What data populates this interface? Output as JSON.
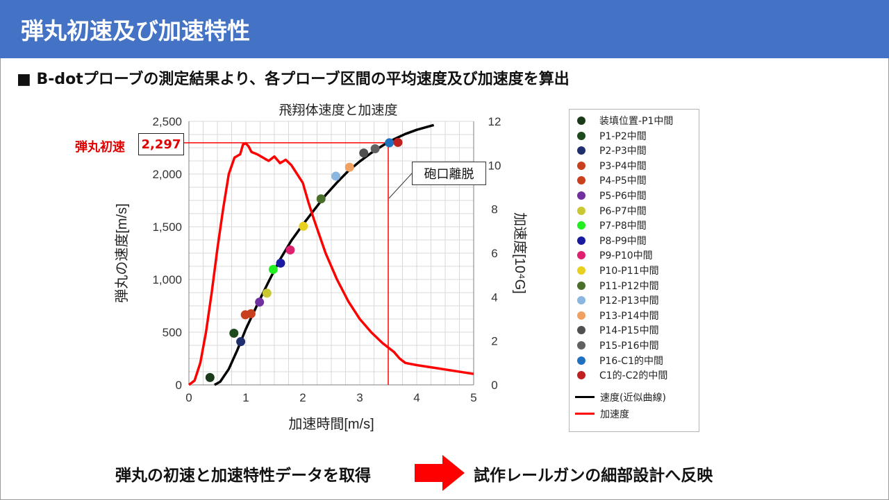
{
  "header": {
    "title": "弾丸初速及び加速特性"
  },
  "subtitle": "■ B-dotプローブの測定結果より、各プローブ区間の平均速度及び加速度を算出",
  "annotations": {
    "initial_velocity_label": "弾丸初速",
    "initial_velocity_value": "2,297",
    "muzzle_exit_label": "砲口離脱"
  },
  "footer": {
    "left_text": "弾丸の初速と加速特性データを取得",
    "right_text": "試作レールガンの細部設計へ反映",
    "arrow_color": "#ff0000"
  },
  "chart_data": {
    "type": "scatter",
    "title": "飛翔体速度と加速度",
    "xlabel": "加速時間[m/s]",
    "ylabel": "弾丸の速度[m/s]",
    "y2label": "加速度[10⁴G]",
    "xlim": [
      0,
      5
    ],
    "ylim": [
      0,
      2500
    ],
    "y2lim": [
      0,
      12
    ],
    "x_ticks": [
      "0",
      "1",
      "2",
      "3",
      "4",
      "5"
    ],
    "y_ticks": [
      "0",
      "500",
      "1,000",
      "1,500",
      "2,000",
      "2,500"
    ],
    "y2_ticks": [
      "0",
      "2",
      "4",
      "6",
      "8",
      "10",
      "12"
    ],
    "grid": true,
    "legend_position": "right",
    "points": [
      {
        "name": "装填位置-P1中間",
        "x": 0.37,
        "y": 70,
        "color": "#1a3a1a"
      },
      {
        "name": "P1-P2中間",
        "x": 0.79,
        "y": 490,
        "color": "#1c4a1c"
      },
      {
        "name": "P2-P3中間",
        "x": 0.91,
        "y": 410,
        "color": "#1f2f6e"
      },
      {
        "name": "P3-P4中間",
        "x": 0.99,
        "y": 665,
        "color": "#c8401e"
      },
      {
        "name": "P4-P5中間",
        "x": 1.09,
        "y": 675,
        "color": "#c8401e"
      },
      {
        "name": "P5-P6中間",
        "x": 1.24,
        "y": 785,
        "color": "#7030a0"
      },
      {
        "name": "P6-P7中間",
        "x": 1.37,
        "y": 870,
        "color": "#c9c832"
      },
      {
        "name": "P7-P8中間",
        "x": 1.48,
        "y": 1095,
        "color": "#22ee22"
      },
      {
        "name": "P8-P9中間",
        "x": 1.61,
        "y": 1155,
        "color": "#1a1aa0"
      },
      {
        "name": "P9-P10中間",
        "x": 1.78,
        "y": 1280,
        "color": "#e0206e"
      },
      {
        "name": "P10-P11中間",
        "x": 2.01,
        "y": 1505,
        "color": "#e8d020"
      },
      {
        "name": "P11-P12中間",
        "x": 2.32,
        "y": 1765,
        "color": "#4a6f2a"
      },
      {
        "name": "P12-P13中間",
        "x": 2.58,
        "y": 1980,
        "color": "#8ab6e0"
      },
      {
        "name": "P13-P14中間",
        "x": 2.82,
        "y": 2065,
        "color": "#f0a060"
      },
      {
        "name": "P14-P15中間",
        "x": 3.07,
        "y": 2200,
        "color": "#505050"
      },
      {
        "name": "P15-P16中間",
        "x": 3.27,
        "y": 2240,
        "color": "#606060"
      },
      {
        "name": "P16-C1的中間",
        "x": 3.52,
        "y": 2297,
        "color": "#2070c0"
      },
      {
        "name": "C1的-C2的中間",
        "x": 3.67,
        "y": 2300,
        "color": "#c02020"
      }
    ],
    "series": [
      {
        "name": "速度(近似曲線)",
        "axis": "y",
        "color": "#000000",
        "points": [
          [
            0.45,
            0
          ],
          [
            0.55,
            30
          ],
          [
            0.7,
            150
          ],
          [
            0.85,
            330
          ],
          [
            1.0,
            530
          ],
          [
            1.2,
            760
          ],
          [
            1.4,
            980
          ],
          [
            1.6,
            1190
          ],
          [
            1.8,
            1370
          ],
          [
            2.0,
            1520
          ],
          [
            2.2,
            1660
          ],
          [
            2.4,
            1800
          ],
          [
            2.6,
            1920
          ],
          [
            2.8,
            2030
          ],
          [
            3.0,
            2120
          ],
          [
            3.2,
            2200
          ],
          [
            3.4,
            2270
          ],
          [
            3.6,
            2330
          ],
          [
            3.8,
            2380
          ],
          [
            4.0,
            2420
          ],
          [
            4.3,
            2465
          ]
        ]
      },
      {
        "name": "加速度",
        "axis": "y2",
        "color": "#ff0000",
        "points": [
          [
            0.0,
            0.0
          ],
          [
            0.1,
            0.2
          ],
          [
            0.2,
            1.0
          ],
          [
            0.3,
            2.4
          ],
          [
            0.4,
            4.2
          ],
          [
            0.5,
            6.2
          ],
          [
            0.6,
            8.0
          ],
          [
            0.7,
            9.6
          ],
          [
            0.8,
            10.35
          ],
          [
            0.9,
            10.5
          ],
          [
            0.95,
            10.95
          ],
          [
            1.0,
            11.0
          ],
          [
            1.05,
            10.85
          ],
          [
            1.1,
            10.6
          ],
          [
            1.2,
            10.5
          ],
          [
            1.3,
            10.35
          ],
          [
            1.4,
            10.2
          ],
          [
            1.5,
            10.4
          ],
          [
            1.6,
            10.1
          ],
          [
            1.7,
            10.25
          ],
          [
            1.8,
            10.0
          ],
          [
            1.9,
            9.6
          ],
          [
            2.0,
            9.2
          ],
          [
            2.1,
            8.3
          ],
          [
            2.2,
            7.5
          ],
          [
            2.4,
            6.0
          ],
          [
            2.6,
            4.8
          ],
          [
            2.8,
            3.8
          ],
          [
            3.0,
            3.0
          ],
          [
            3.2,
            2.4
          ],
          [
            3.4,
            1.9
          ],
          [
            3.6,
            1.5
          ],
          [
            3.7,
            1.2
          ],
          [
            3.8,
            1.0
          ],
          [
            4.0,
            0.9
          ],
          [
            4.5,
            0.7
          ],
          [
            5.0,
            0.5
          ]
        ]
      }
    ],
    "reference_lines": {
      "horizontal_y": 2297,
      "vertical_x": 3.5,
      "color": "#ff0000"
    }
  }
}
